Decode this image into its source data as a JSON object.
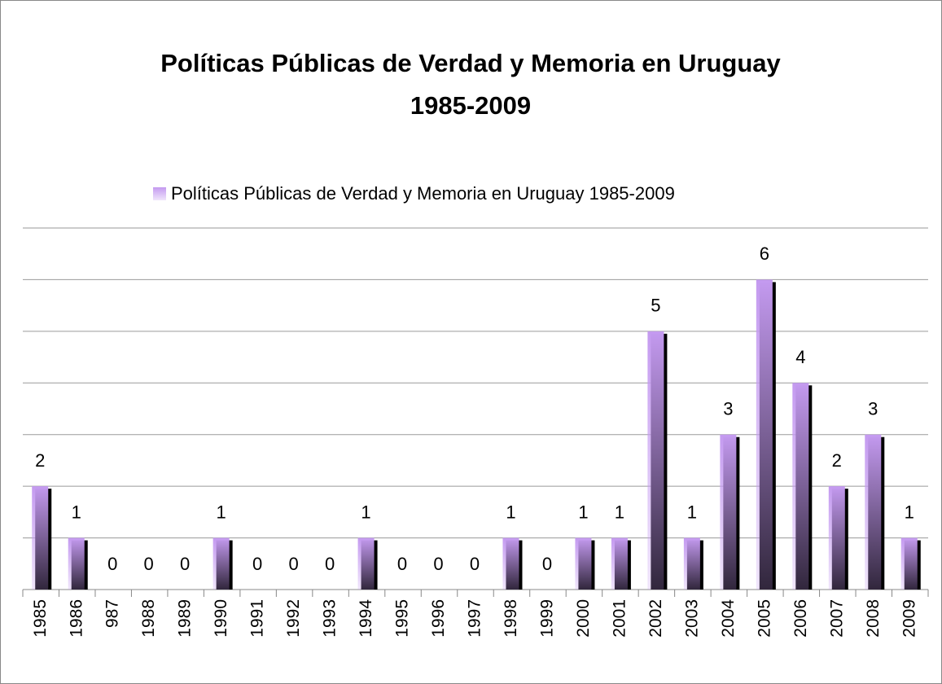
{
  "chart_data": {
    "type": "bar",
    "title": [
      "Políticas Públicas de Verdad y Memoria en Uruguay",
      "1985-2009"
    ],
    "series": [
      {
        "name": "Políticas Públicas de Verdad y Memoria en Uruguay 1985-2009",
        "color": "#c49af0",
        "values": [
          2,
          1,
          0,
          0,
          0,
          1,
          0,
          0,
          0,
          1,
          0,
          0,
          0,
          1,
          0,
          1,
          1,
          5,
          1,
          3,
          6,
          4,
          2,
          3,
          1
        ]
      }
    ],
    "categories": [
      "1985",
      "1986",
      "987",
      "1988",
      "1989",
      "1990",
      "1991",
      "1992",
      "1993",
      "1994",
      "1995",
      "1996",
      "1997",
      "1998",
      "1999",
      "2000",
      "2001",
      "2002",
      "2003",
      "2004",
      "2005",
      "2006",
      "2007",
      "2008",
      "2009"
    ],
    "ylim": [
      0,
      7
    ],
    "yticks": [
      0,
      1,
      2,
      3,
      4,
      5,
      6,
      7
    ],
    "grid": true,
    "legend": "top"
  }
}
